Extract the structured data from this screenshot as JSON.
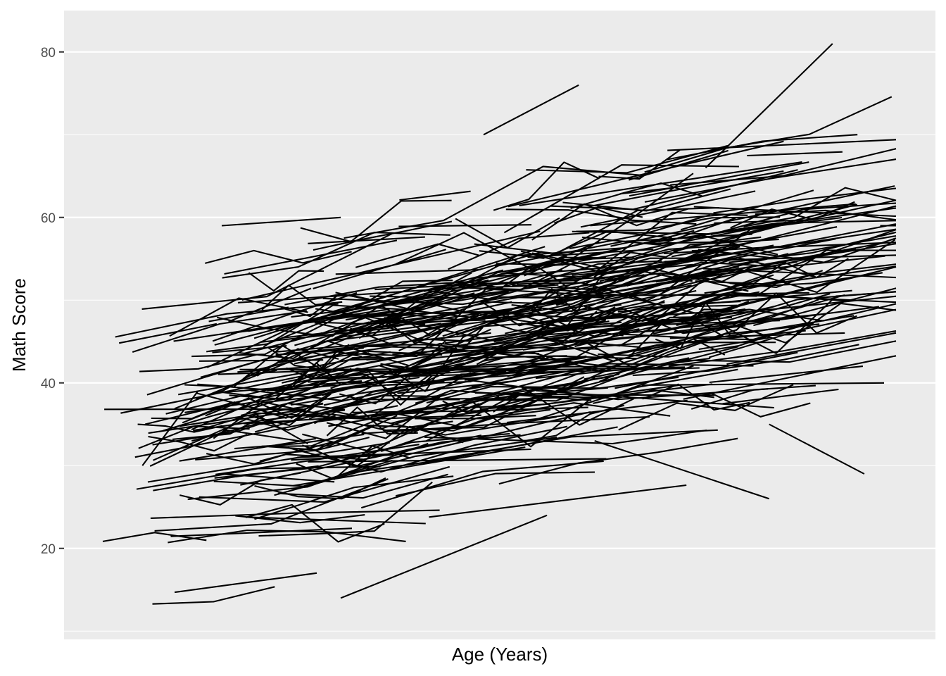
{
  "chart_data": {
    "type": "line",
    "title": "",
    "xlabel": "Age (Years)",
    "ylabel": "Math Score",
    "x_tick_labels_shown": false,
    "ylim": [
      9,
      85
    ],
    "y_ticks": [
      20,
      40,
      60,
      80
    ],
    "grid": true,
    "legend": "none",
    "series_style": "one black line per subject (spaghetti plot)",
    "colors": {
      "panel": "#EBEBEB",
      "grid": "#FFFFFF",
      "line": "#000000",
      "tick_text": "#4D4D4D"
    },
    "subject_count": 480,
    "overall_trend": {
      "start_x": 0.0,
      "end_x": 1.0,
      "mean_score_start": 33,
      "mean_score_end": 50
    },
    "example_trajectories": [
      {
        "x": [
          0.48,
          0.6
        ],
        "y": [
          70,
          76
        ]
      },
      {
        "x": [
          0.15,
          0.3
        ],
        "y": [
          59,
          60
        ]
      },
      {
        "x": [
          0.05,
          0.12
        ],
        "y": [
          30,
          39
        ]
      },
      {
        "x": [
          0.76,
          0.92
        ],
        "y": [
          66,
          81
        ]
      },
      {
        "x": [
          0.3,
          0.56
        ],
        "y": [
          14,
          24
        ]
      },
      {
        "x": [
          0.84,
          0.96
        ],
        "y": [
          35,
          29
        ]
      },
      {
        "x": [
          0.62,
          0.84
        ],
        "y": [
          33,
          26
        ]
      },
      {
        "x": [
          0.98,
          1.0
        ],
        "y": [
          59,
          59
        ]
      }
    ]
  }
}
